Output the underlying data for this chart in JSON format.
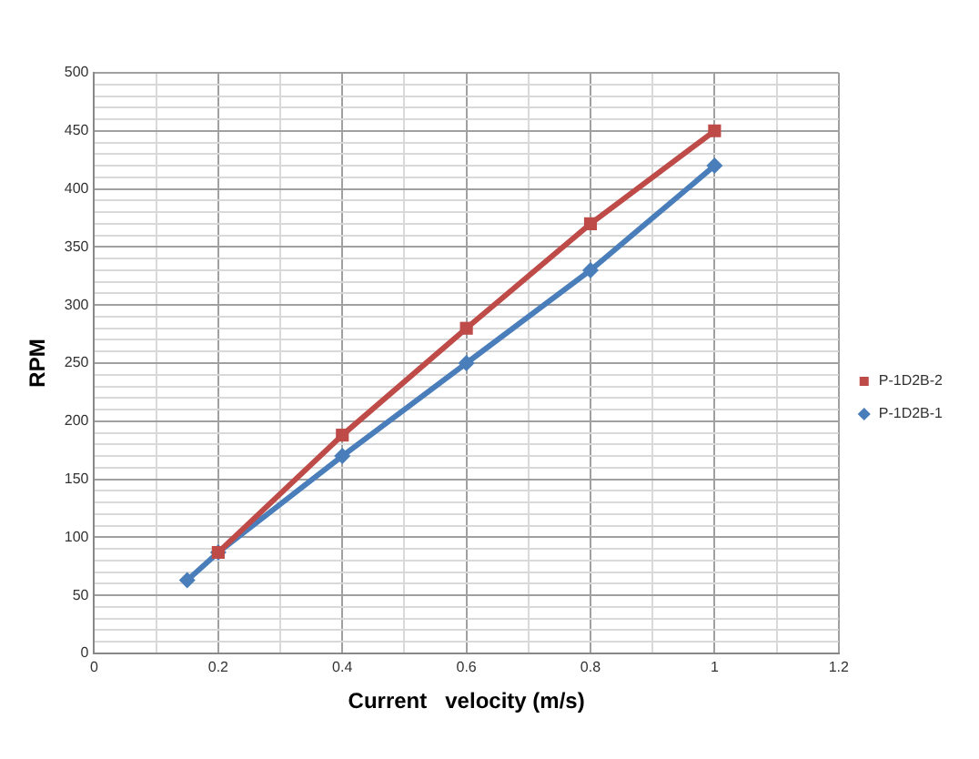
{
  "chart_data": {
    "type": "line",
    "xlabel": "Current   velocity (m/s)",
    "ylabel": "RPM",
    "series": [
      {
        "name": "P-1D2B-1",
        "color": "#4a7ebb",
        "marker": "diamond",
        "x": [
          0.15,
          0.2,
          0.4,
          0.6,
          0.8,
          1
        ],
        "values": [
          63,
          87,
          170,
          250,
          330,
          420
        ]
      },
      {
        "name": "P-1D2B-2",
        "color": "#be4b48",
        "marker": "square",
        "x": [
          0.2,
          0.4,
          0.6,
          0.8,
          1
        ],
        "values": [
          87,
          188,
          280,
          370,
          450
        ]
      }
    ],
    "xlim": [
      0,
      1.2
    ],
    "xticks": [
      0,
      {
        "value": 0.1,
        "label": null
      },
      0.2,
      {
        "value": 0.3,
        "label": null
      },
      0.4,
      {
        "value": 0.5,
        "label": null
      },
      0.6,
      {
        "value": 0.7,
        "label": null
      },
      0.8,
      {
        "value": 0.9,
        "label": null
      },
      1,
      {
        "value": 1.1,
        "label": null
      },
      1.2
    ],
    "ylim": [
      0,
      500
    ],
    "yticks": [
      0,
      {
        "value": 10,
        "label": null
      },
      {
        "value": 20,
        "label": null
      },
      {
        "value": 30,
        "label": null
      },
      {
        "value": 40,
        "label": null
      },
      50,
      {
        "value": 60,
        "label": null
      },
      {
        "value": 70,
        "label": null
      },
      {
        "value": 80,
        "label": null
      },
      {
        "value": 90,
        "label": null
      },
      100,
      {
        "value": 110,
        "label": null
      },
      {
        "value": 120,
        "label": null
      },
      {
        "value": 130,
        "label": null
      },
      {
        "value": 140,
        "label": null
      },
      150,
      {
        "value": 160,
        "label": null
      },
      {
        "value": 170,
        "label": null
      },
      {
        "value": 180,
        "label": null
      },
      {
        "value": 190,
        "label": null
      },
      200,
      {
        "value": 210,
        "label": null
      },
      {
        "value": 220,
        "label": null
      },
      {
        "value": 230,
        "label": null
      },
      {
        "value": 240,
        "label": null
      },
      250,
      {
        "value": 260,
        "label": null
      },
      {
        "value": 270,
        "label": null
      },
      {
        "value": 280,
        "label": null
      },
      {
        "value": 290,
        "label": null
      },
      300,
      {
        "value": 310,
        "label": null
      },
      {
        "value": 320,
        "label": null
      },
      {
        "value": 330,
        "label": null
      },
      {
        "value": 340,
        "label": null
      },
      350,
      {
        "value": 360,
        "label": null
      },
      {
        "value": 370,
        "label": null
      },
      {
        "value": 380,
        "label": null
      },
      {
        "value": 390,
        "label": null
      },
      400,
      {
        "value": 410,
        "label": null
      },
      {
        "value": 420,
        "label": null
      },
      {
        "value": 430,
        "label": null
      },
      {
        "value": 440,
        "label": null
      },
      450,
      {
        "value": 460,
        "label": null
      },
      {
        "value": 470,
        "label": null
      },
      {
        "value": 480,
        "label": null
      },
      {
        "value": 490,
        "label": null
      },
      500
    ],
    "grid": true,
    "legend": "right",
    "line_style": "solid"
  }
}
